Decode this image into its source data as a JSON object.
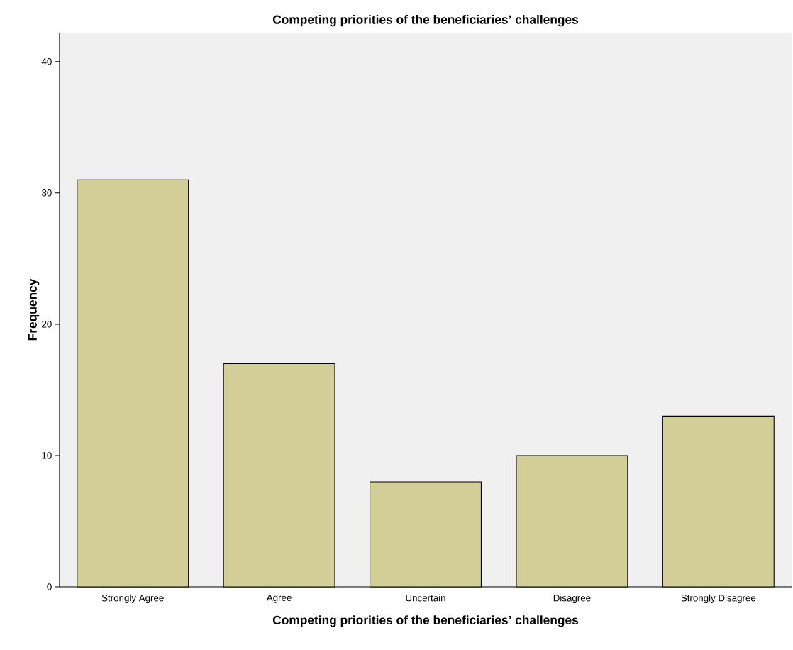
{
  "chart_data": {
    "type": "bar",
    "title": "Competing priorities of the beneficiaries’ challenges",
    "xlabel": "Competing priorities of the beneficiaries’ challenges",
    "ylabel": "Frequency",
    "categories": [
      "Strongly Agree",
      "Agree",
      "Uncertain",
      "Disagree",
      "Strongly Disagree"
    ],
    "values": [
      31,
      17,
      8,
      10,
      13
    ],
    "color": "#d3ce97",
    "ylim": [
      0,
      42.2
    ],
    "yticks": [
      0,
      10,
      20,
      30,
      40
    ]
  }
}
